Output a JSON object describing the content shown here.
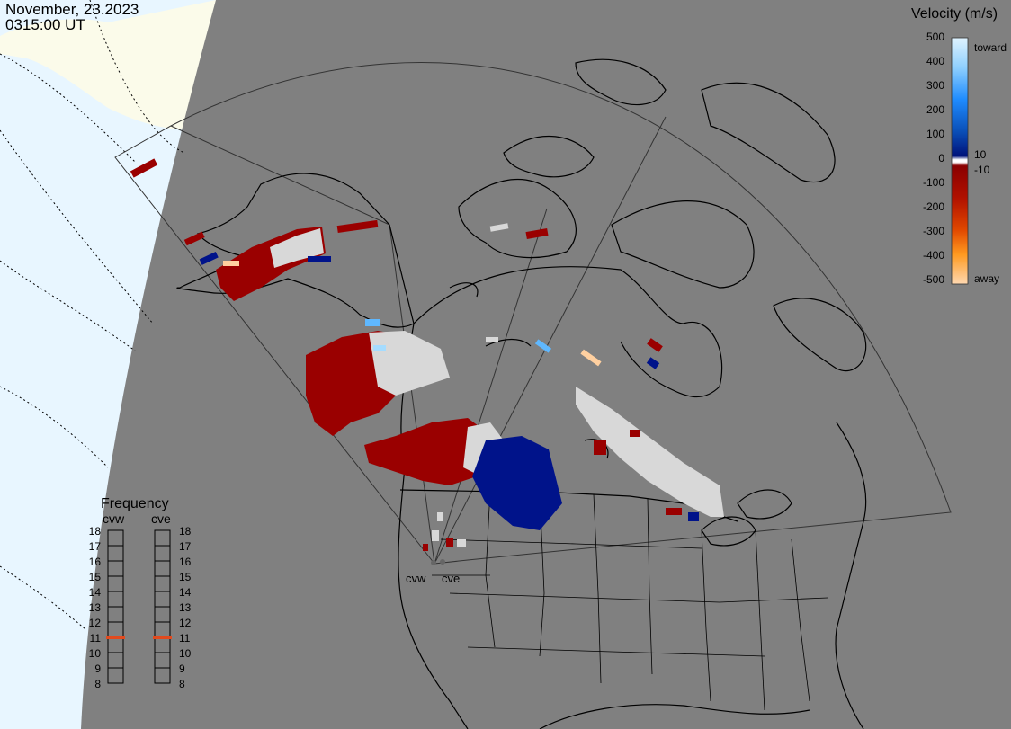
{
  "header": {
    "date": "November, 23.2023",
    "time": "0315:00 UT"
  },
  "velocity_scale": {
    "title": "Velocity (m/s)",
    "ticks": [
      "500",
      "400",
      "300",
      "200",
      "100",
      "0",
      "-100",
      "-200",
      "-300",
      "-400",
      "-500"
    ],
    "positive_small_label": "10",
    "negative_small_label": "-10",
    "toward_label": "toward",
    "away_label": "away",
    "colors": [
      "#dff3ff",
      "#a5dcff",
      "#5fb8ff",
      "#1f8cff",
      "#0a64d6",
      "#0a3fa8",
      "#00127a",
      "#ffffff",
      "#8a0000",
      "#a80000",
      "#c82400",
      "#e04800",
      "#f47a00",
      "#ff9a20",
      "#ffd0a0"
    ]
  },
  "frequency_panel": {
    "title": "Frequency",
    "radars": [
      "cvw",
      "cve"
    ],
    "levels": [
      "18",
      "17",
      "16",
      "15",
      "14",
      "13",
      "12",
      "11",
      "10",
      "9",
      "8"
    ],
    "active_level": "11",
    "active_color": "#e24a1e"
  },
  "map": {
    "radar_site_labels": [
      "cvw",
      "cve"
    ],
    "land_color": "#808080",
    "ocean_color": "#e8f6ff",
    "ice_color": "#fbfbea",
    "toward_color": "#00138a",
    "away_color": "#9a0000",
    "low_velocity_color": "#d8d8d8"
  }
}
